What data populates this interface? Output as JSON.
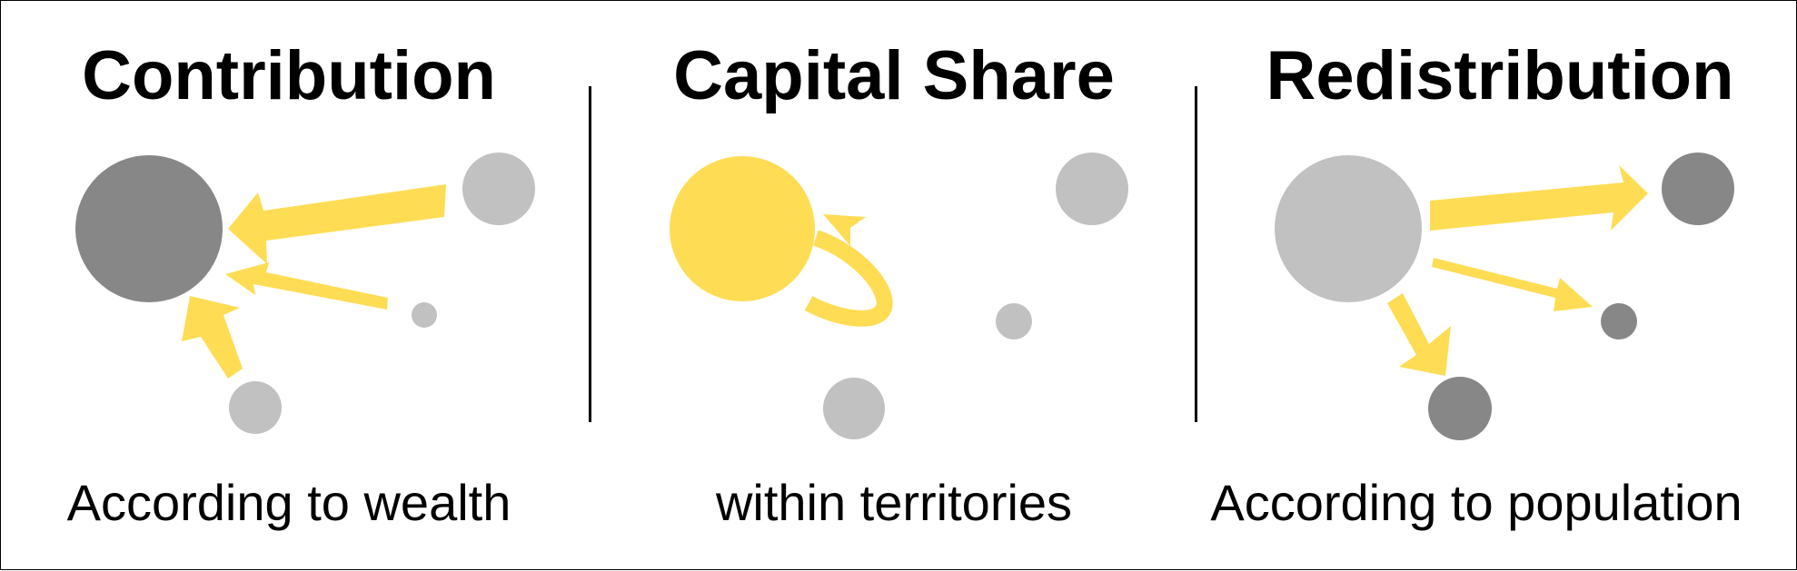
{
  "panels": [
    {
      "title": "Contribution",
      "subtitle": "According to wealth"
    },
    {
      "title": "Capital Share",
      "subtitle": "within territories"
    },
    {
      "title": "Redistribution",
      "subtitle": "According to population"
    }
  ],
  "colors": {
    "arrow": "#FEDD55",
    "dark_circle": "#878787",
    "light_circle": "#C1C1C1",
    "yellow_circle": "#FEDD55",
    "text": "#000000",
    "divider": "#000000"
  }
}
